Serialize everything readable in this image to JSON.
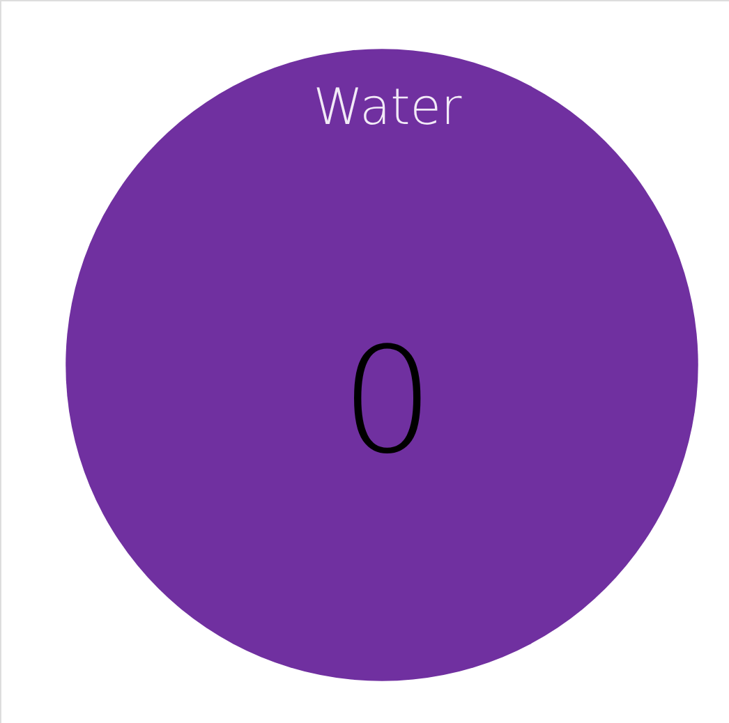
{
  "chart_data": {
    "type": "other",
    "categories": [
      "Water"
    ],
    "values": [
      0
    ],
    "colors": [
      "#7030a0"
    ],
    "data_labels": true
  }
}
